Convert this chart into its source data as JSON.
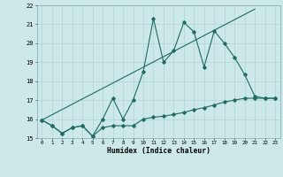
{
  "xlabel": "Humidex (Indice chaleur)",
  "xlim": [
    -0.5,
    23.5
  ],
  "ylim": [
    15,
    22
  ],
  "yticks": [
    15,
    16,
    17,
    18,
    19,
    20,
    21,
    22
  ],
  "xticks": [
    0,
    1,
    2,
    3,
    4,
    5,
    6,
    7,
    8,
    9,
    10,
    11,
    12,
    13,
    14,
    15,
    16,
    17,
    18,
    19,
    20,
    21,
    22,
    23
  ],
  "bg_color": "#cce8e8",
  "line_color": "#1e6b60",
  "grid_color": "#aacfcf",
  "line1_x": [
    0,
    1,
    2,
    3,
    4,
    5,
    6,
    7,
    8,
    9,
    10,
    11,
    12,
    13,
    14,
    15,
    16,
    17,
    18,
    19,
    20,
    21,
    22,
    23
  ],
  "line1_y": [
    15.95,
    15.65,
    15.25,
    15.55,
    15.65,
    15.1,
    15.55,
    15.65,
    15.65,
    15.65,
    16.0,
    16.1,
    16.15,
    16.25,
    16.35,
    16.5,
    16.6,
    16.75,
    16.9,
    17.0,
    17.1,
    17.1,
    17.1,
    17.1
  ],
  "line2_x": [
    0,
    1,
    2,
    3,
    4,
    5,
    6,
    7,
    8,
    9,
    10,
    11,
    12,
    13,
    14,
    15,
    16,
    17,
    18,
    19,
    20,
    21,
    22,
    23
  ],
  "line2_y": [
    15.95,
    15.65,
    15.25,
    15.55,
    15.65,
    15.1,
    16.0,
    17.1,
    16.0,
    17.0,
    18.5,
    21.3,
    19.0,
    19.6,
    21.1,
    20.6,
    18.75,
    20.65,
    20.0,
    19.25,
    18.35,
    17.2,
    17.1,
    17.1
  ],
  "line3_x": [
    0,
    21
  ],
  "line3_y": [
    15.95,
    21.8
  ]
}
